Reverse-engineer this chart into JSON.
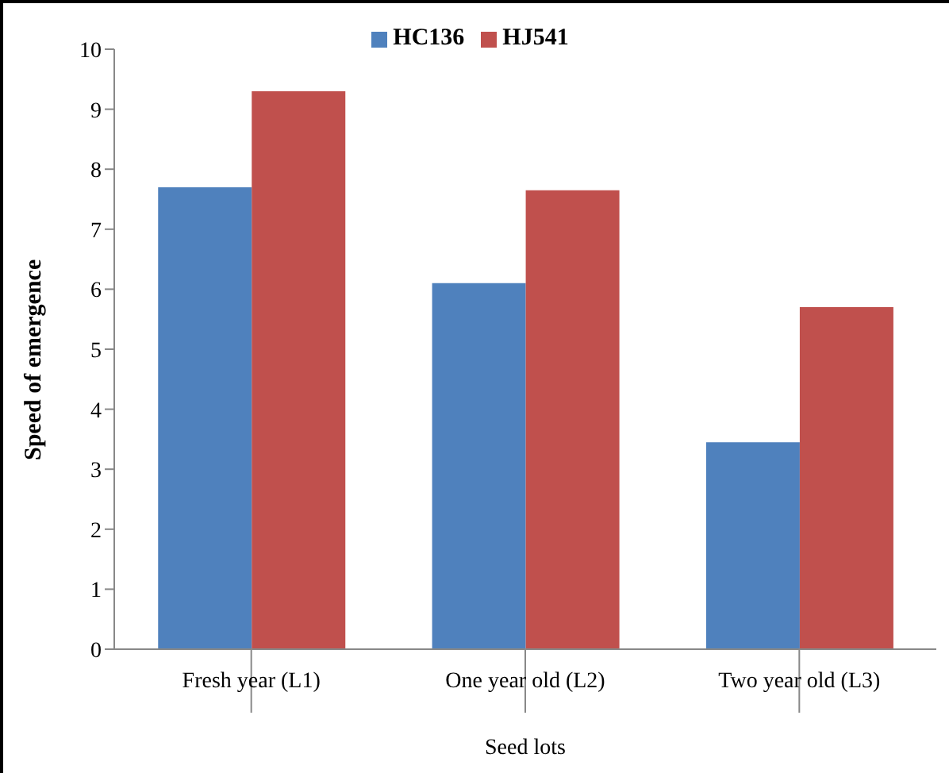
{
  "chart_data": {
    "type": "bar",
    "xlabel": "Seed lots",
    "ylabel": "Speed of emergence",
    "categories": [
      "Fresh year (L1)",
      "One year old (L2)",
      "Two year old (L3)"
    ],
    "series": [
      {
        "name": "HC136",
        "color": "#4f81bd",
        "values": [
          7.7,
          6.1,
          3.45
        ]
      },
      {
        "name": "HJ541",
        "color": "#c0504d",
        "values": [
          9.3,
          7.65,
          5.7
        ]
      }
    ],
    "ylim": [
      0,
      10
    ],
    "yticks": [
      0,
      1,
      2,
      3,
      4,
      5,
      6,
      7,
      8,
      9,
      10
    ],
    "grid": false,
    "legend": "top"
  }
}
